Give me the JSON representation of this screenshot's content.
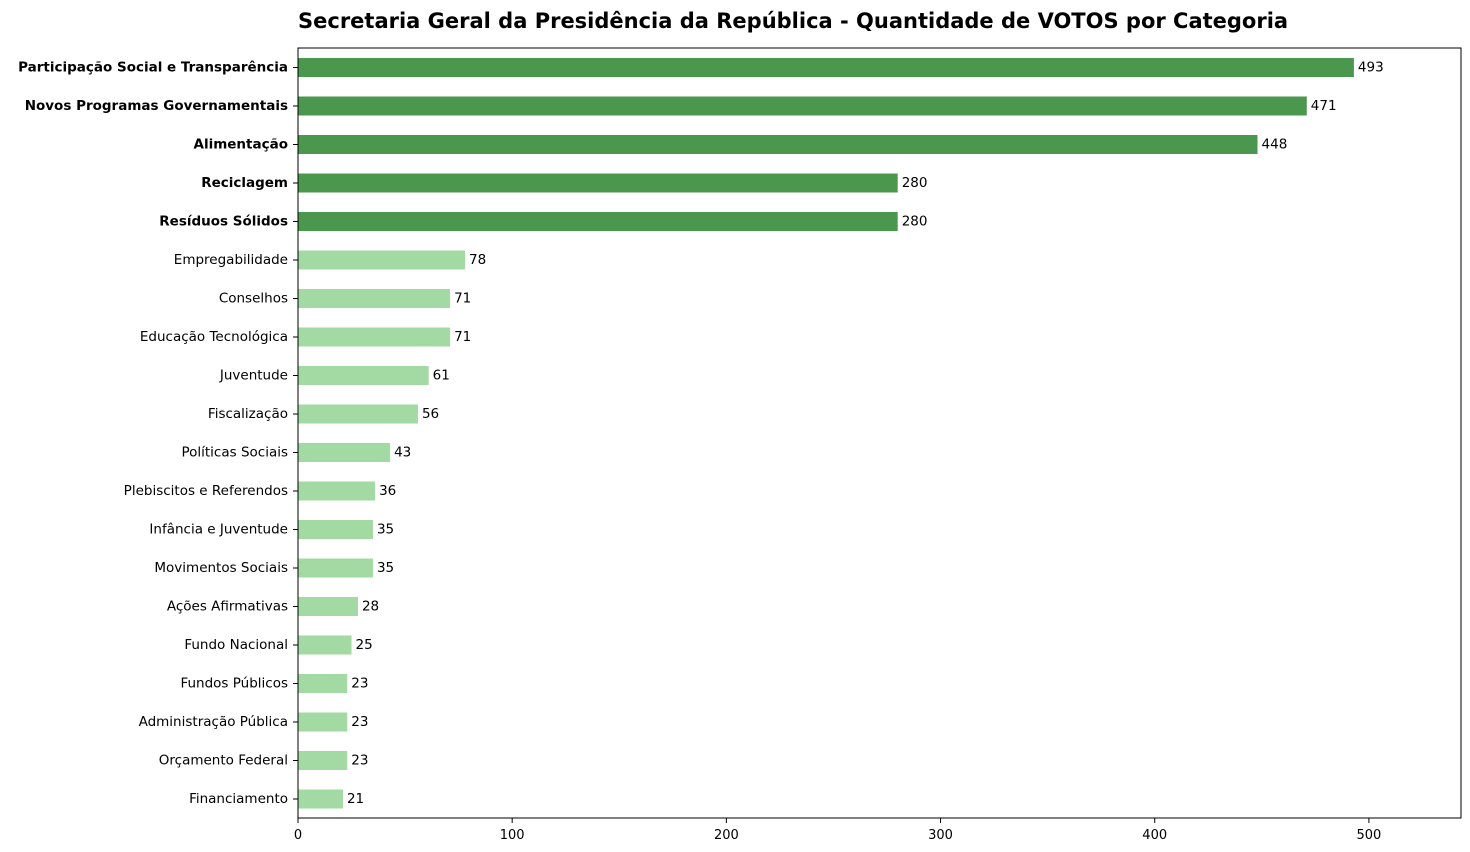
{
  "chart_data": {
    "type": "bar",
    "orientation": "horizontal",
    "title": "Secretaria Geral da Presidência da República - Quantidade de VOTOS por Categoria",
    "xlabel": "",
    "ylabel": "",
    "xlim": [
      0,
      543
    ],
    "xticks": [
      0,
      100,
      200,
      300,
      400,
      500
    ],
    "grid": false,
    "legend": "none",
    "highlight_color": "#4c974e",
    "base_color": "#a3d9a2",
    "categories": [
      "Participação Social e Transparência",
      "Novos Programas Governamentais",
      "Alimentação",
      "Reciclagem",
      "Resíduos Sólidos",
      "Empregabilidade",
      "Conselhos",
      "Educação Tecnológica",
      "Juventude",
      "Fiscalização",
      "Políticas Sociais",
      "Plebiscitos e Referendos",
      "Infância e Juventude",
      "Movimentos Sociais",
      "Ações Afirmativas",
      "Fundo Nacional",
      "Fundos Públicos",
      "Administração Pública",
      "Orçamento Federal",
      "Financiamento"
    ],
    "values": [
      493,
      471,
      448,
      280,
      280,
      78,
      71,
      71,
      61,
      56,
      43,
      36,
      35,
      35,
      28,
      25,
      23,
      23,
      23,
      21
    ],
    "highlighted": [
      true,
      true,
      true,
      true,
      true,
      false,
      false,
      false,
      false,
      false,
      false,
      false,
      false,
      false,
      false,
      false,
      false,
      false,
      false,
      false
    ]
  }
}
